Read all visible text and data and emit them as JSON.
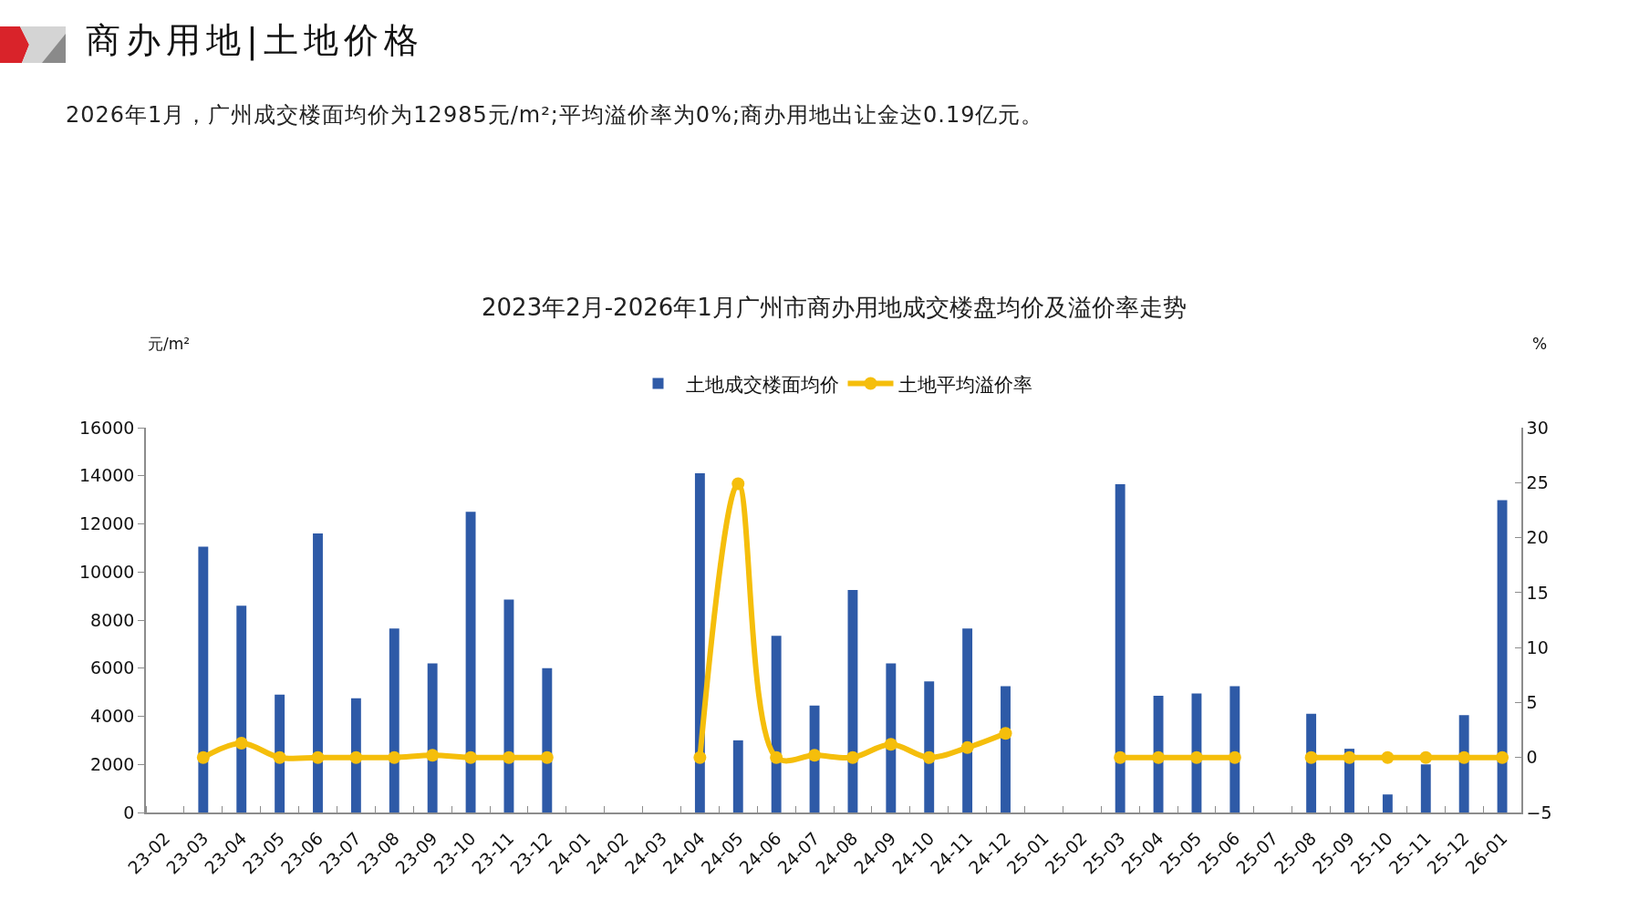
{
  "chart_data": {
    "type": "bar",
    "title": "商办用地|土地价格",
    "subtitle": "2026年1月，广州成交楼面均价为12985元/m²;平均溢价率为0%;商办用地出让金达0.19亿元。",
    "annotations": [
      "2023年2月-2026年1月广州市商办用地成交楼盘均价及溢价率走势"
    ],
    "ylabel": "元/m²",
    "y2label": "%",
    "categories": [
      "23-02",
      "23-03",
      "23-04",
      "23-05",
      "23-06",
      "23-07",
      "23-08",
      "23-09",
      "23-10",
      "23-11",
      "23-12",
      "24-01",
      "24-02",
      "24-03",
      "24-04",
      "24-05",
      "24-06",
      "24-07",
      "24-08",
      "24-09",
      "24-10",
      "24-11",
      "24-12",
      "25-01",
      "25-02",
      "25-03",
      "25-04",
      "25-05",
      "25-06",
      "25-07",
      "25-08",
      "25-09",
      "25-10",
      "25-11",
      "25-12",
      "26-01"
    ],
    "series": [
      {
        "name": "土地成交楼面均价",
        "color": "#2e5aa7",
        "values": [
          null,
          11050,
          8600,
          4900,
          11600,
          4750,
          7650,
          6200,
          12500,
          8850,
          6000,
          null,
          null,
          null,
          14100,
          3000,
          7350,
          4450,
          9250,
          6200,
          5450,
          7650,
          5250,
          null,
          null,
          13650,
          4850,
          4950,
          5250,
          null,
          4100,
          2650,
          750,
          2000,
          4050,
          12985
        ]
      },
      {
        "name": "土地平均溢价率",
        "type": "line",
        "axis": "y2",
        "color": "#f5be0b",
        "values": [
          null,
          0,
          1.3,
          0,
          0,
          0,
          0,
          0.2,
          0,
          0,
          0,
          null,
          null,
          null,
          0,
          24.9,
          0,
          0.2,
          0,
          1.2,
          0,
          0.9,
          2.2,
          null,
          null,
          0,
          0,
          0,
          0,
          null,
          0,
          0,
          0,
          0,
          0,
          0
        ]
      }
    ],
    "ylim": [
      0,
      16000
    ],
    "yticks": [
      0,
      2000,
      4000,
      6000,
      8000,
      10000,
      12000,
      14000,
      16000
    ],
    "y2lim": [
      -5,
      30
    ],
    "y2ticks": [
      {
        "value": -5,
        "label": "−5"
      },
      0,
      5,
      10,
      15,
      20,
      25,
      30
    ],
    "legend": "top",
    "marker": "circle",
    "line_style": "solid"
  }
}
